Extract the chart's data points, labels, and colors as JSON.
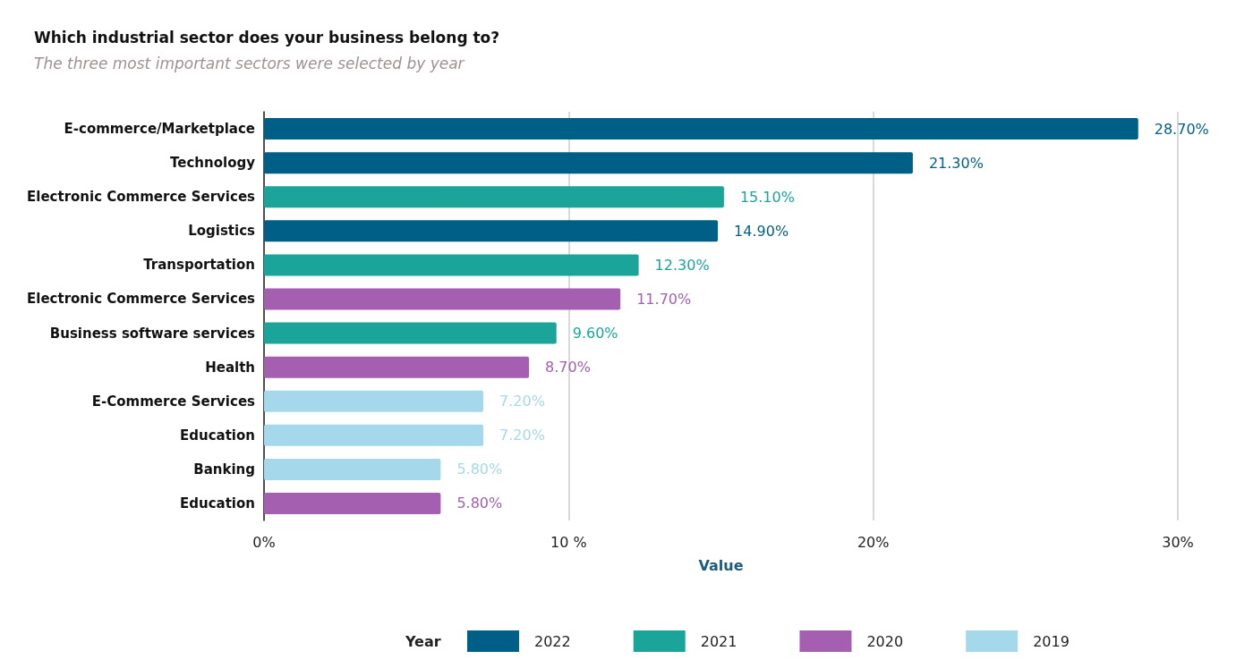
{
  "chart_data": {
    "type": "bar",
    "orientation": "horizontal",
    "stacked": true,
    "title": "Which industrial sector does your business belong to?",
    "subtitle": "The three most important sectors were selected by year",
    "xlabel": "Value",
    "legend_title": "Year",
    "legend": "bottom",
    "grid": "x",
    "categories": [
      "E-commerce/Marketplace",
      "Technology",
      "Electronic Commerce Services",
      "Logistics",
      "Transportation",
      "Electronic Commerce Services",
      "Business software services",
      "Health",
      "E-Commerce Services",
      "Education",
      "Banking",
      "Education"
    ],
    "xlim": [
      0,
      30
    ],
    "xticks": [
      {
        "value": 0,
        "label": "0%"
      },
      {
        "value": 10,
        "label": "10 %"
      },
      {
        "value": 20,
        "label": "20%"
      },
      {
        "value": 30,
        "label": "30%"
      }
    ],
    "series": [
      {
        "name": "2022",
        "color": "#005f87",
        "values": [
          28.7,
          21.3,
          null,
          14.9,
          null,
          null,
          null,
          null,
          null,
          null,
          null,
          null
        ],
        "value_labels": [
          "28.70%",
          "21.30%",
          null,
          "14.90%",
          null,
          null,
          null,
          null,
          null,
          null,
          null,
          null
        ]
      },
      {
        "name": "2021",
        "color": "#1ba59a",
        "values": [
          null,
          null,
          15.1,
          null,
          12.3,
          null,
          9.6,
          null,
          null,
          null,
          null,
          null
        ],
        "value_labels": [
          null,
          null,
          "15.10%",
          null,
          "12.30%",
          null,
          "9.60%",
          null,
          null,
          null,
          null,
          null
        ]
      },
      {
        "name": "2020",
        "color": "#a45fb1",
        "values": [
          null,
          null,
          null,
          null,
          null,
          11.7,
          null,
          8.7,
          null,
          null,
          null,
          5.8
        ],
        "value_labels": [
          null,
          null,
          null,
          null,
          null,
          "11.70%",
          null,
          "8.70%",
          null,
          null,
          null,
          "5.80%"
        ]
      },
      {
        "name": "2019",
        "color": "#a6d8ec",
        "values": [
          null,
          null,
          null,
          null,
          null,
          null,
          null,
          null,
          7.2,
          7.2,
          5.8,
          null
        ],
        "value_labels": [
          null,
          null,
          null,
          null,
          null,
          null,
          null,
          null,
          "7.20%",
          "7.20%",
          "5.80%",
          null
        ]
      }
    ]
  }
}
